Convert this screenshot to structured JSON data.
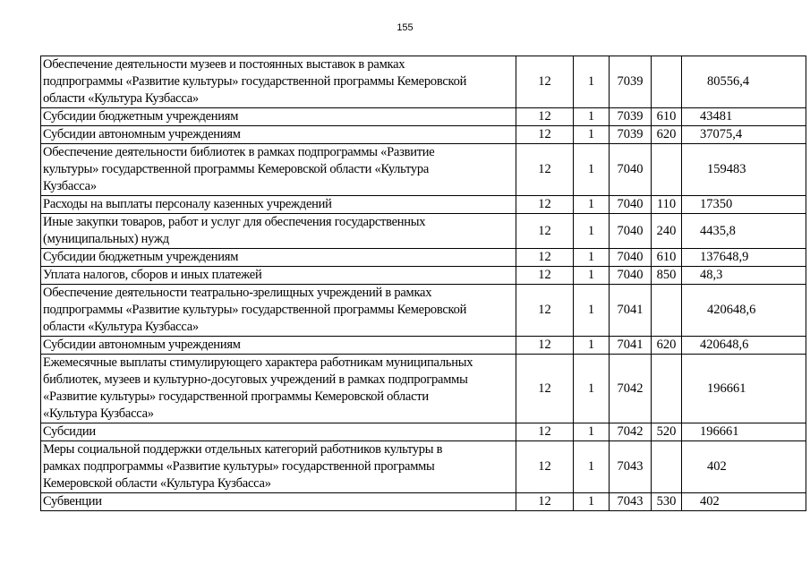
{
  "page_number": "155",
  "rows": [
    {
      "name": "Обеспечение деятельности  музеев и постоянных выставок в рамках\nподпрограммы «Развитие культуры» государственной программы Кемеровской\nобласти «Культура Кузбасса»",
      "sect": "12",
      "sub": "1",
      "code": "7039",
      "type": "",
      "amount": "80556,4"
    },
    {
      "name": "Субсидии бюджетным учреждениям",
      "sect": "12",
      "sub": "1",
      "code": "7039",
      "type": "610",
      "amount": "43481"
    },
    {
      "name": "Субсидии автономным учреждениям",
      "sect": "12",
      "sub": "1",
      "code": "7039",
      "type": "620",
      "amount": "37075,4"
    },
    {
      "name": "Обеспечение деятельности библиотек в рамках подпрограммы «Развитие\nкультуры» государственной программы Кемеровской области «Культура\nКузбасса»",
      "sect": "12",
      "sub": "1",
      "code": "7040",
      "type": "",
      "amount": "159483"
    },
    {
      "name": "Расходы на выплаты персоналу казенных учреждений",
      "sect": "12",
      "sub": "1",
      "code": "7040",
      "type": "110",
      "amount": "17350"
    },
    {
      "name": "Иные закупки товаров, работ и услуг для обеспечения государственных\n(муниципальных) нужд",
      "sect": "12",
      "sub": "1",
      "code": "7040",
      "type": "240",
      "amount": "4435,8"
    },
    {
      "name": "Субсидии бюджетным учреждениям",
      "sect": "12",
      "sub": "1",
      "code": "7040",
      "type": "610",
      "amount": "137648,9"
    },
    {
      "name": "Уплата налогов, сборов и иных платежей",
      "sect": "12",
      "sub": "1",
      "code": "7040",
      "type": "850",
      "amount": "48,3"
    },
    {
      "name": "Обеспечение деятельности театрально-зрелищных учреждений в рамках\nподпрограммы «Развитие культуры» государственной программы Кемеровской\nобласти «Культура Кузбасса»",
      "sect": "12",
      "sub": "1",
      "code": "7041",
      "type": "",
      "amount": "420648,6"
    },
    {
      "name": "Субсидии автономным учреждениям",
      "sect": "12",
      "sub": "1",
      "code": "7041",
      "type": "620",
      "amount": "420648,6"
    },
    {
      "name": "Ежемесячные выплаты стимулирующего характера работникам муниципальных\nбиблиотек, музеев и культурно-досуговых учреждений в рамках подпрограммы\n«Развитие культуры» государственной программы Кемеровской области\n«Культура Кузбасса»",
      "sect": "12",
      "sub": "1",
      "code": "7042",
      "type": "",
      "amount": "196661"
    },
    {
      "name": "Субсидии",
      "sect": "12",
      "sub": "1",
      "code": "7042",
      "type": "520",
      "amount": "196661"
    },
    {
      "name": "Меры социальной поддержки отдельных категорий работников культуры в\nрамках подпрограммы «Развитие культуры» государственной программы\nКемеровской области «Культура Кузбасса»",
      "sect": "12",
      "sub": "1",
      "code": "7043",
      "type": "",
      "amount": "402"
    },
    {
      "name": "Субвенции",
      "sect": "12",
      "sub": "1",
      "code": "7043",
      "type": "530",
      "amount": "402"
    }
  ]
}
